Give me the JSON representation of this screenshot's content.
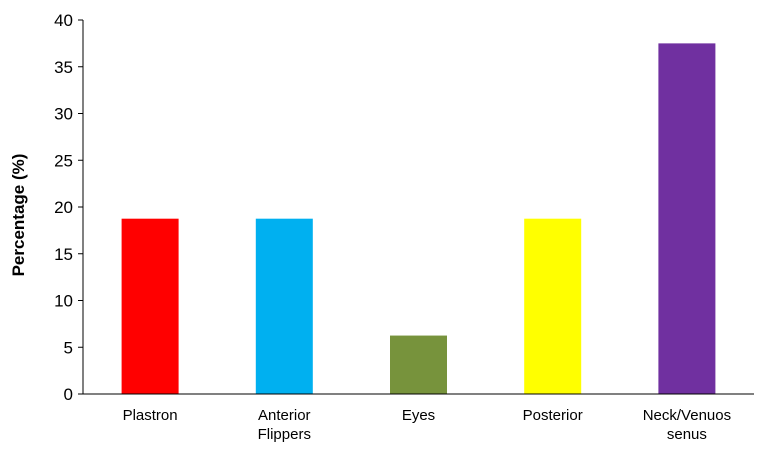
{
  "chart_data": {
    "type": "bar",
    "title": "",
    "xlabel": "",
    "ylabel": "Percentage (%)",
    "ylim": [
      0,
      40
    ],
    "yticks": [
      0,
      5,
      10,
      15,
      20,
      25,
      30,
      35,
      40
    ],
    "grid": false,
    "legend": "none",
    "categories": [
      [
        "Plastron"
      ],
      [
        "Anterior",
        "Flippers"
      ],
      [
        "Eyes"
      ],
      [
        "Posterior"
      ],
      [
        "Neck/Venuos",
        "senus"
      ]
    ],
    "values": [
      18.75,
      18.75,
      6.25,
      18.75,
      37.5
    ],
    "colors": [
      "#ff0000",
      "#00b0f0",
      "#77933c",
      "#ffff00",
      "#7030a0"
    ]
  }
}
